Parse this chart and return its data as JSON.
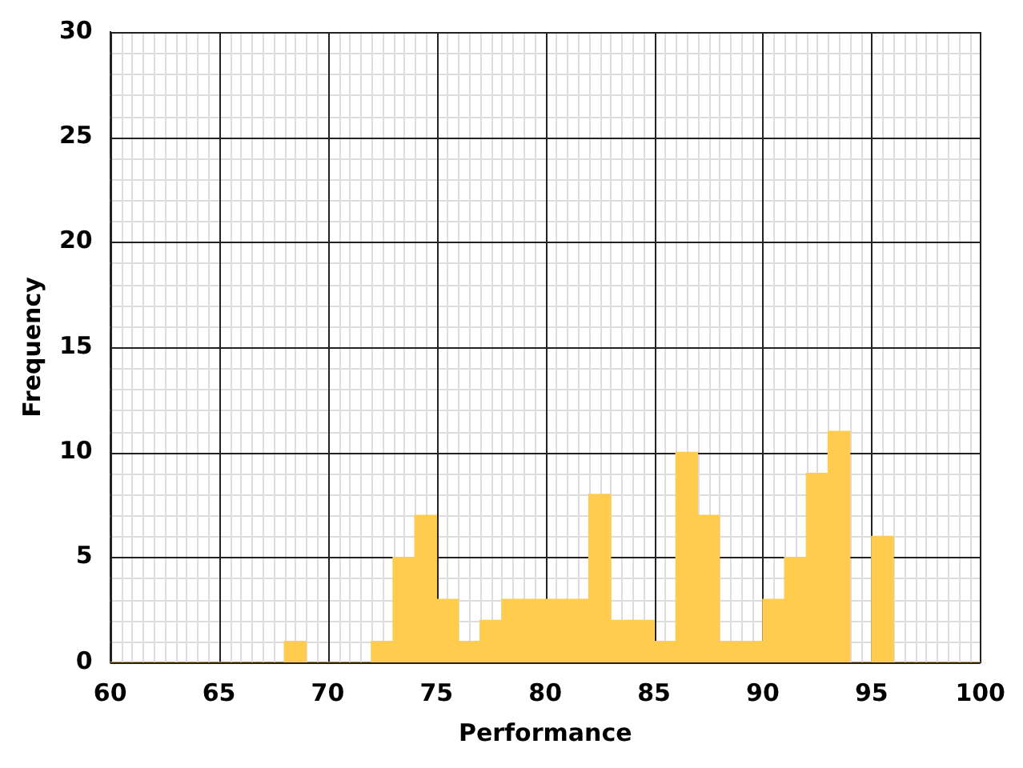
{
  "chart_data": {
    "type": "histogram",
    "xlabel": "Performance",
    "ylabel": "Frequency",
    "bins": [
      60,
      61,
      62,
      63,
      64,
      65,
      66,
      67,
      68,
      69,
      70,
      71,
      72,
      73,
      74,
      75,
      76,
      77,
      78,
      79,
      80,
      81,
      82,
      83,
      84,
      85,
      86,
      87,
      88,
      89,
      90,
      91,
      92,
      93,
      94,
      95,
      96,
      97,
      98,
      99,
      100
    ],
    "values": [
      0,
      0,
      0,
      0,
      0,
      0,
      0,
      0,
      1,
      0,
      0,
      0,
      1,
      5,
      7,
      3,
      1,
      2,
      3,
      3,
      3,
      3,
      8,
      2,
      2,
      1,
      10,
      7,
      1,
      1,
      3,
      5,
      9,
      11,
      0,
      6,
      0,
      0,
      0,
      0
    ],
    "color": "#ffcc4d",
    "xlim": [
      60,
      100
    ],
    "ylim": [
      0,
      30
    ],
    "xticks": [
      60,
      65,
      70,
      75,
      80,
      85,
      90,
      95,
      100
    ],
    "yticks": [
      0,
      5,
      10,
      15,
      20,
      25,
      30
    ],
    "grid": true
  }
}
